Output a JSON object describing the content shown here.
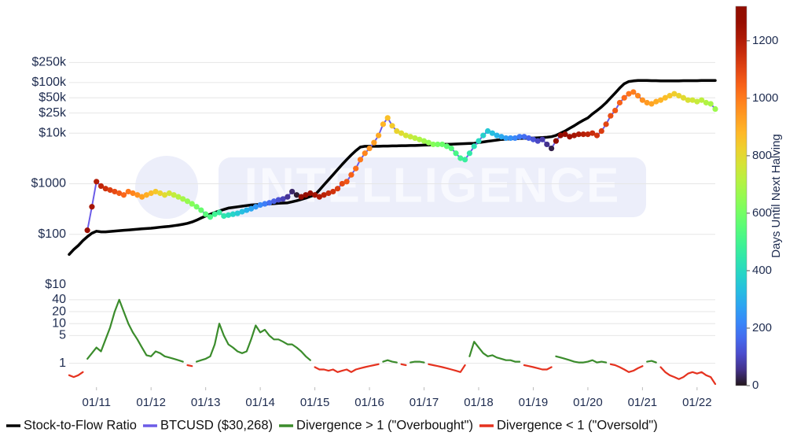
{
  "chart_data": {
    "type": "line",
    "x": [
      "2010-07",
      "2010-08",
      "2010-09",
      "2010-10",
      "2010-11",
      "2010-12",
      "2011-01",
      "2011-02",
      "2011-03",
      "2011-04",
      "2011-05",
      "2011-06",
      "2011-07",
      "2011-08",
      "2011-09",
      "2011-10",
      "2011-11",
      "2011-12",
      "2012-01",
      "2012-02",
      "2012-03",
      "2012-04",
      "2012-05",
      "2012-06",
      "2012-07",
      "2012-08",
      "2012-09",
      "2012-10",
      "2012-11",
      "2012-12",
      "2013-01",
      "2013-02",
      "2013-03",
      "2013-04",
      "2013-05",
      "2013-06",
      "2013-07",
      "2013-08",
      "2013-09",
      "2013-10",
      "2013-11",
      "2013-12",
      "2014-01",
      "2014-02",
      "2014-03",
      "2014-04",
      "2014-05",
      "2014-06",
      "2014-07",
      "2014-08",
      "2014-09",
      "2014-10",
      "2014-11",
      "2014-12",
      "2015-01",
      "2015-02",
      "2015-03",
      "2015-04",
      "2015-05",
      "2015-06",
      "2015-07",
      "2015-08",
      "2015-09",
      "2015-10",
      "2015-11",
      "2015-12",
      "2016-01",
      "2016-02",
      "2016-03",
      "2016-04",
      "2016-05",
      "2016-06",
      "2016-07",
      "2016-08",
      "2016-09",
      "2016-10",
      "2016-11",
      "2016-12",
      "2017-01",
      "2017-02",
      "2017-03",
      "2017-04",
      "2017-05",
      "2017-06",
      "2017-07",
      "2017-08",
      "2017-09",
      "2017-10",
      "2017-11",
      "2017-12",
      "2018-01",
      "2018-02",
      "2018-03",
      "2018-04",
      "2018-05",
      "2018-06",
      "2018-07",
      "2018-08",
      "2018-09",
      "2018-10",
      "2018-11",
      "2018-12",
      "2019-01",
      "2019-02",
      "2019-03",
      "2019-04",
      "2019-05",
      "2019-06",
      "2019-07",
      "2019-08",
      "2019-09",
      "2019-10",
      "2019-11",
      "2019-12",
      "2020-01",
      "2020-02",
      "2020-03",
      "2020-04",
      "2020-05",
      "2020-06",
      "2020-07",
      "2020-08",
      "2020-09",
      "2020-10",
      "2020-11",
      "2020-12",
      "2021-01",
      "2021-02",
      "2021-03",
      "2021-04",
      "2021-05",
      "2021-06",
      "2021-07",
      "2021-08",
      "2021-09",
      "2021-10",
      "2021-11",
      "2021-12",
      "2022-01",
      "2022-02",
      "2022-03",
      "2022-04",
      "2022-05"
    ],
    "xlim": [
      "2010-07",
      "2022-05"
    ],
    "xticks": [
      {
        "value": "2011-01",
        "label": "01/11"
      },
      {
        "value": "2012-01",
        "label": "01/12"
      },
      {
        "value": "2013-01",
        "label": "01/13"
      },
      {
        "value": "2014-01",
        "label": "01/14"
      },
      {
        "value": "2015-01",
        "label": "01/15"
      },
      {
        "value": "2016-01",
        "label": "01/16"
      },
      {
        "value": "2017-01",
        "label": "01/17"
      },
      {
        "value": "2018-01",
        "label": "01/18"
      },
      {
        "value": "2019-01",
        "label": "01/19"
      },
      {
        "value": "2020-01",
        "label": "01/20"
      },
      {
        "value": "2021-01",
        "label": "01/21"
      },
      {
        "value": "2022-01",
        "label": "01/22"
      }
    ],
    "ylim": [
      10,
      500000
    ],
    "yscale": "log",
    "yticks": [
      {
        "value": 10,
        "label": "$10"
      },
      {
        "value": 100,
        "label": "$100"
      },
      {
        "value": 1000,
        "label": "$1000"
      },
      {
        "value": 10000,
        "label": "$10k"
      },
      {
        "value": 25000,
        "label": "$25k"
      },
      {
        "value": 50000,
        "label": "$50k"
      },
      {
        "value": 100000,
        "label": "$100k"
      },
      {
        "value": 250000,
        "label": "$250k"
      }
    ],
    "y2lim": [
      0.25,
      60
    ],
    "y2scale": "log",
    "y2ticks": [
      40,
      20,
      10,
      5,
      1
    ],
    "grid": true,
    "legend": "bottom",
    "series": [
      {
        "name": "Stock-to-Flow Ratio",
        "color": "#000000",
        "values": [
          40,
          50,
          60,
          75,
          90,
          105,
          115,
          112,
          112,
          114,
          116,
          118,
          120,
          122,
          124,
          126,
          128,
          130,
          132,
          135,
          138,
          141,
          144,
          148,
          152,
          158,
          165,
          175,
          190,
          210,
          230,
          250,
          270,
          290,
          310,
          330,
          340,
          350,
          360,
          370,
          380,
          385,
          390,
          395,
          400,
          405,
          410,
          415,
          420,
          440,
          460,
          490,
          520,
          560,
          600,
          750,
          950,
          1200,
          1500,
          1900,
          2400,
          3000,
          3700,
          4500,
          5300,
          5500,
          5500,
          5500,
          5500,
          5550,
          5550,
          5600,
          5600,
          5650,
          5650,
          5700,
          5700,
          5750,
          5800,
          5850,
          5900,
          5950,
          6000,
          6000,
          6050,
          6100,
          6150,
          6200,
          6250,
          6300,
          6500,
          6700,
          6900,
          7100,
          7300,
          7500,
          7600,
          7700,
          7800,
          7850,
          7900,
          7950,
          8000,
          8100,
          8200,
          8300,
          8500,
          9000,
          10000,
          11000,
          12500,
          14000,
          16000,
          18000,
          20000,
          24000,
          28000,
          33000,
          40000,
          50000,
          62000,
          78000,
          95000,
          105000,
          108000,
          110000,
          110000,
          110000,
          109000,
          109000,
          108000,
          108000,
          108000,
          108000,
          108000,
          109000,
          109000,
          109000,
          109000,
          110000,
          110000,
          110000,
          110000
        ]
      },
      {
        "name": "BTCUSD ($30,268)",
        "color": "#6c5ce7",
        "values": [
          null,
          null,
          null,
          null,
          120,
          350,
          1100,
          900,
          800,
          750,
          700,
          650,
          600,
          700,
          650,
          600,
          550,
          600,
          650,
          700,
          650,
          600,
          650,
          600,
          550,
          500,
          450,
          400,
          350,
          300,
          250,
          220,
          250,
          270,
          230,
          240,
          250,
          260,
          280,
          300,
          320,
          350,
          380,
          400,
          420,
          450,
          480,
          500,
          550,
          700,
          600,
          550,
          600,
          650,
          600,
          550,
          600,
          650,
          700,
          800,
          1000,
          1100,
          1500,
          2000,
          3000,
          4000,
          5000,
          6500,
          9000,
          15000,
          20000,
          14000,
          11000,
          10000,
          9000,
          8500,
          8000,
          7500,
          7000,
          6500,
          6000,
          6000,
          6000,
          5500,
          5000,
          4000,
          3200,
          3000,
          4000,
          5500,
          7000,
          9000,
          11000,
          10000,
          9000,
          8500,
          8000,
          8000,
          8000,
          8500,
          8500,
          8000,
          7500,
          7000,
          7500,
          6000,
          5000,
          7000,
          9000,
          9500,
          8500,
          9000,
          9500,
          9500,
          9500,
          10000,
          9000,
          11000,
          15000,
          22000,
          28000,
          40000,
          50000,
          60000,
          65000,
          55000,
          45000,
          40000,
          38000,
          42000,
          45000,
          50000,
          55000,
          60000,
          55000,
          50000,
          45000,
          45000,
          42000,
          45000,
          40000,
          38000,
          30000
        ],
        "days_until_next_halving": [
          null,
          null,
          null,
          null,
          1250,
          1225,
          1198,
          1171,
          1144,
          1117,
          1090,
          1063,
          1036,
          1009,
          982,
          955,
          928,
          901,
          874,
          847,
          820,
          793,
          766,
          739,
          712,
          685,
          658,
          631,
          604,
          577,
          550,
          523,
          496,
          469,
          442,
          415,
          388,
          361,
          334,
          307,
          280,
          253,
          226,
          199,
          172,
          145,
          118,
          91,
          64,
          37,
          10,
          1300,
          1277,
          1254,
          1231,
          1208,
          1185,
          1162,
          1139,
          1116,
          1093,
          1070,
          1047,
          1024,
          1001,
          978,
          955,
          932,
          909,
          886,
          863,
          840,
          817,
          794,
          771,
          748,
          725,
          702,
          679,
          656,
          633,
          610,
          587,
          564,
          541,
          518,
          495,
          472,
          449,
          426,
          403,
          380,
          357,
          334,
          311,
          288,
          265,
          242,
          219,
          196,
          173,
          150,
          127,
          104,
          81,
          58,
          20,
          1300,
          1282,
          1264,
          1246,
          1228,
          1210,
          1192,
          1174,
          1156,
          1138,
          1120,
          1102,
          1084,
          1066,
          1048,
          1030,
          1012,
          994,
          976,
          958,
          940,
          922,
          904,
          886,
          868,
          850,
          832,
          814,
          796,
          778,
          760,
          742,
          724,
          706,
          688,
          670
        ]
      },
      {
        "name": "Divergence > 1 (\"Overbought\")",
        "color": "#3b8c2c",
        "axis": "y2",
        "values": [
          null,
          null,
          null,
          null,
          1.3,
          1.8,
          2.5,
          2,
          4,
          8,
          20,
          40,
          20,
          10,
          6,
          4,
          2.5,
          1.6,
          1.5,
          2,
          1.8,
          1.5,
          1.4,
          1.3,
          1.2,
          1.1,
          null,
          null,
          1.1,
          1.2,
          1.3,
          1.5,
          3,
          10,
          5,
          3,
          2.5,
          2,
          1.8,
          2,
          4,
          9,
          6,
          7,
          5,
          4,
          4,
          3.5,
          3,
          3,
          2.5,
          2,
          1.5,
          1.2,
          null,
          null,
          null,
          null,
          null,
          null,
          null,
          null,
          null,
          null,
          null,
          null,
          null,
          null,
          null,
          1.1,
          1.2,
          1.1,
          1.05,
          null,
          null,
          1.05,
          1.1,
          1.1,
          1.05,
          null,
          null,
          null,
          null,
          null,
          null,
          null,
          null,
          null,
          1.5,
          3.5,
          2.5,
          1.8,
          1.5,
          1.6,
          1.4,
          1.3,
          1.2,
          1.2,
          1.1,
          1.1,
          null,
          null,
          null,
          null,
          null,
          null,
          null,
          1.5,
          1.4,
          1.3,
          1.2,
          1.1,
          1.05,
          1.05,
          1.1,
          1.2,
          1.05,
          1.1,
          1.05,
          null,
          null,
          null,
          null,
          null,
          null,
          null,
          null,
          1.1,
          1.15,
          1.05,
          null,
          null,
          null,
          null,
          null,
          null,
          null,
          null,
          null,
          null,
          null,
          null,
          null
        ]
      },
      {
        "name": "Divergence < 1 (\"Oversold\")",
        "color": "#e5321f",
        "axis": "y2",
        "values": [
          0.5,
          0.45,
          0.5,
          0.6,
          null,
          null,
          null,
          null,
          null,
          null,
          null,
          null,
          null,
          null,
          null,
          null,
          null,
          null,
          null,
          null,
          null,
          null,
          null,
          null,
          null,
          null,
          0.9,
          0.85,
          null,
          null,
          null,
          null,
          null,
          null,
          null,
          null,
          null,
          null,
          null,
          null,
          null,
          null,
          null,
          null,
          null,
          null,
          null,
          null,
          null,
          null,
          null,
          null,
          null,
          null,
          0.8,
          0.7,
          0.7,
          0.65,
          0.7,
          0.6,
          0.65,
          0.7,
          0.6,
          0.7,
          0.75,
          0.8,
          0.85,
          0.9,
          0.95,
          null,
          null,
          null,
          null,
          0.95,
          0.9,
          null,
          null,
          null,
          null,
          0.95,
          0.9,
          0.85,
          0.8,
          0.75,
          0.7,
          0.65,
          0.6,
          0.9,
          null,
          null,
          null,
          null,
          null,
          null,
          null,
          null,
          null,
          null,
          null,
          null,
          0.9,
          0.85,
          0.8,
          0.75,
          0.7,
          0.7,
          0.8,
          null,
          null,
          null,
          null,
          null,
          null,
          null,
          null,
          null,
          null,
          null,
          null,
          0.95,
          0.9,
          0.8,
          0.7,
          0.6,
          0.65,
          0.75,
          0.85,
          null,
          null,
          null,
          0.8,
          0.6,
          0.5,
          0.45,
          0.4,
          0.45,
          0.55,
          0.6,
          0.55,
          0.6,
          0.5,
          0.45,
          0.3
        ]
      }
    ],
    "colorbar": {
      "label": "Days Until Next Halving",
      "colormap": "turbo",
      "lim": [
        0,
        1320
      ],
      "ticks": [
        0,
        200,
        400,
        600,
        800,
        1000,
        1200
      ]
    },
    "watermark": "INTELLIGENCE"
  }
}
